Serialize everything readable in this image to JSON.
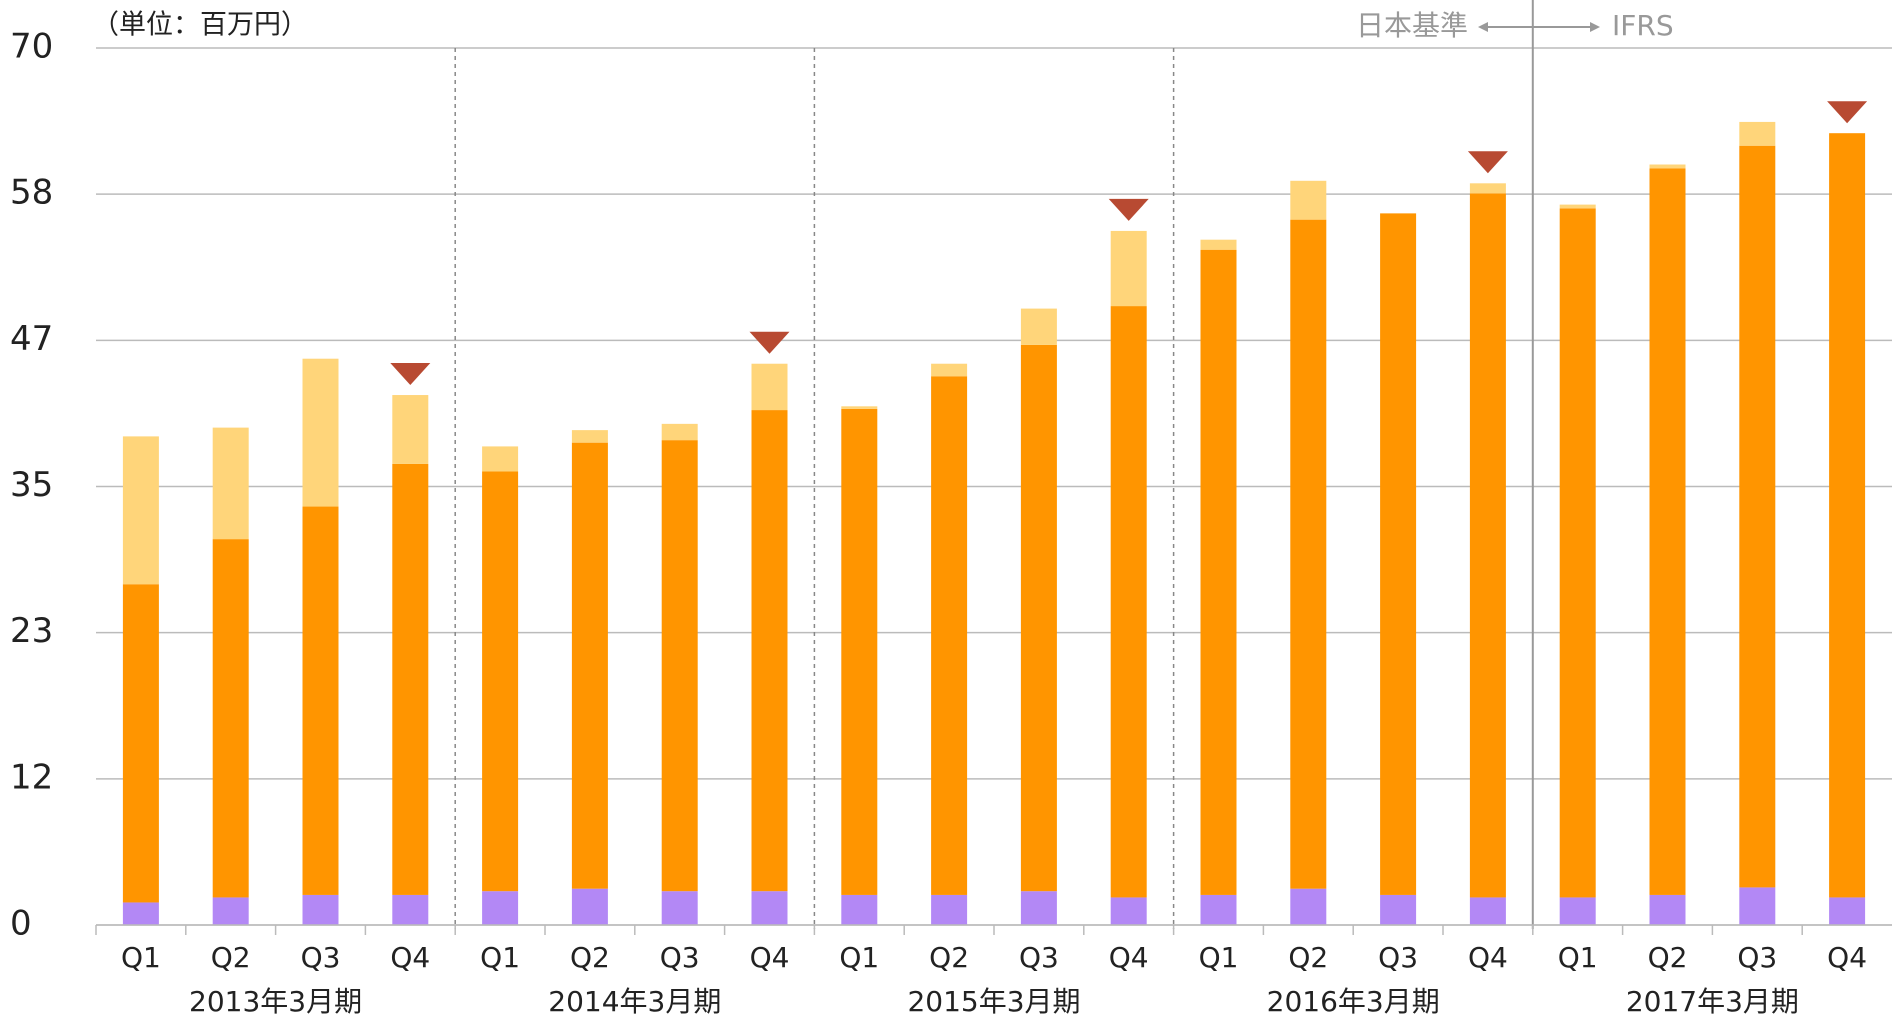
{
  "chart_data": {
    "type": "stacked_bar",
    "unit_label": "（単位：百万円）",
    "standard_before": "日本基準",
    "standard_after": "IFRS",
    "categories": [
      "Q1",
      "Q2",
      "Q3",
      "Q4",
      "Q1",
      "Q2",
      "Q3",
      "Q4",
      "Q1",
      "Q2",
      "Q3",
      "Q4",
      "Q1",
      "Q2",
      "Q3",
      "Q4",
      "Q1",
      "Q2",
      "Q3",
      "Q4"
    ],
    "groups": [
      "2013年3月期",
      "2014年3月期",
      "2015年3月期",
      "2016年3月期",
      "2017年3月期"
    ],
    "series": [
      {
        "color": "#b388f5",
        "values": [
          1.8,
          2.2,
          2.4,
          2.4,
          2.7,
          2.9,
          2.7,
          2.7,
          2.4,
          2.4,
          2.7,
          2.2,
          2.4,
          2.9,
          2.4,
          2.2,
          2.2,
          2.4,
          3.0,
          2.2
        ]
      },
      {
        "color": "#ff9500",
        "values": [
          25.4,
          28.6,
          31.0,
          34.4,
          33.5,
          35.6,
          36.0,
          38.4,
          38.8,
          41.4,
          43.6,
          47.2,
          51.5,
          53.4,
          54.4,
          56.2,
          55.0,
          58.0,
          59.2,
          61.0
        ]
      },
      {
        "color": "#ffd57a",
        "values": [
          11.8,
          8.9,
          11.8,
          5.5,
          2.0,
          1.0,
          1.3,
          3.7,
          0.2,
          1.0,
          2.9,
          6.0,
          0.8,
          3.1,
          0,
          0.8,
          0.3,
          0.3,
          1.9,
          0
        ]
      }
    ],
    "ylim": [
      0,
      70
    ],
    "yticks": [
      0,
      {
        "value": 11.667,
        "label": "12"
      },
      {
        "value": 23.333,
        "label": "23"
      },
      35,
      {
        "value": 46.667,
        "label": "47"
      },
      {
        "value": 58.333,
        "label": "58"
      },
      70
    ],
    "grid": true
  }
}
